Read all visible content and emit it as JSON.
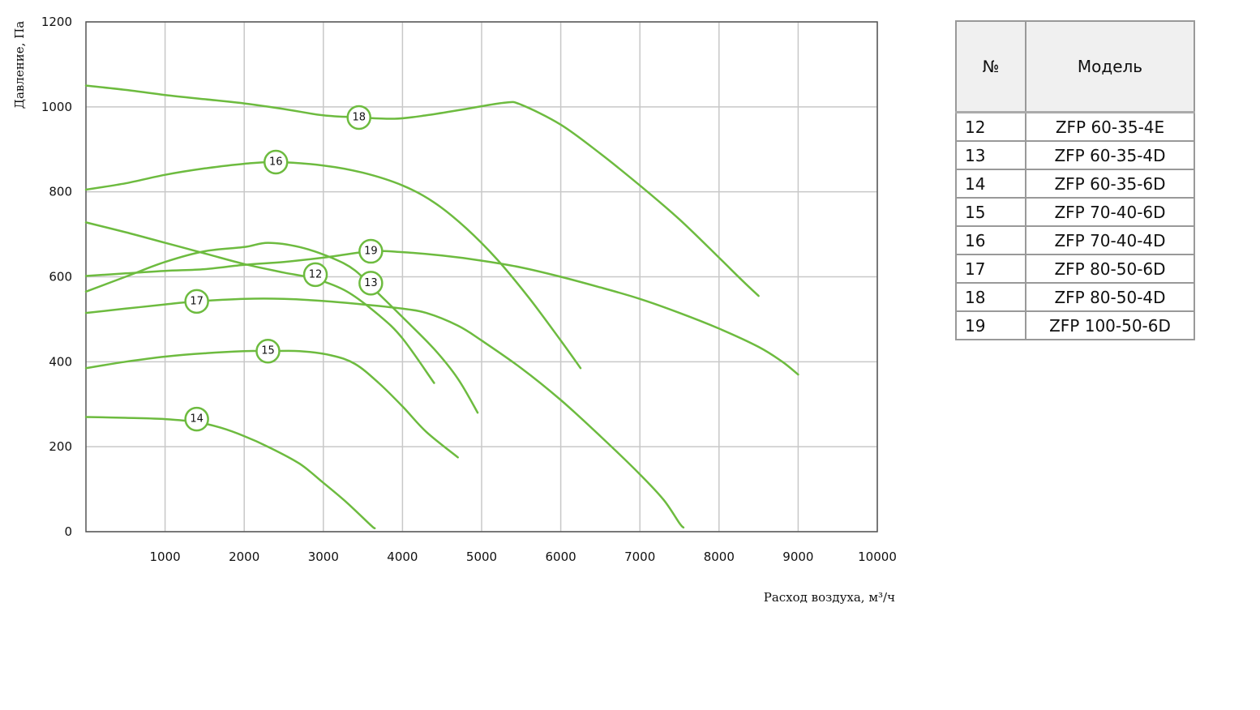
{
  "chart_data": {
    "type": "line",
    "xlabel": "Расход воздуха, м³/ч",
    "ylabel": "Давление, Па",
    "xlim": [
      0,
      10000
    ],
    "ylim": [
      0,
      1200
    ],
    "x_ticks": [
      1000,
      2000,
      3000,
      4000,
      5000,
      6000,
      7000,
      8000,
      9000,
      10000
    ],
    "y_ticks": [
      0,
      200,
      400,
      600,
      800,
      1000,
      1200
    ],
    "grid": true,
    "line_color": "#6dbb3f",
    "series": [
      {
        "name": "12",
        "label_at": [
          2900,
          605
        ],
        "points": [
          [
            0,
            728
          ],
          [
            500,
            705
          ],
          [
            1000,
            680
          ],
          [
            1500,
            655
          ],
          [
            2000,
            630
          ],
          [
            2500,
            610
          ],
          [
            2900,
            595
          ],
          [
            3300,
            565
          ],
          [
            3700,
            510
          ],
          [
            4000,
            455
          ],
          [
            4400,
            350
          ]
        ]
      },
      {
        "name": "13",
        "label_at": [
          3600,
          585
        ],
        "points": [
          [
            0,
            565
          ],
          [
            500,
            600
          ],
          [
            1000,
            635
          ],
          [
            1500,
            660
          ],
          [
            2000,
            670
          ],
          [
            2300,
            680
          ],
          [
            2700,
            670
          ],
          [
            3100,
            645
          ],
          [
            3400,
            615
          ],
          [
            3700,
            560
          ],
          [
            4000,
            505
          ],
          [
            4400,
            430
          ],
          [
            4700,
            360
          ],
          [
            4950,
            280
          ]
        ]
      },
      {
        "name": "14",
        "label_at": [
          1400,
          265
        ],
        "points": [
          [
            0,
            270
          ],
          [
            500,
            268
          ],
          [
            1000,
            265
          ],
          [
            1400,
            258
          ],
          [
            1700,
            245
          ],
          [
            2000,
            225
          ],
          [
            2300,
            200
          ],
          [
            2700,
            160
          ],
          [
            3000,
            115
          ],
          [
            3300,
            68
          ],
          [
            3600,
            15
          ],
          [
            3650,
            8
          ]
        ]
      },
      {
        "name": "15",
        "label_at": [
          2300,
          425
        ],
        "points": [
          [
            0,
            385
          ],
          [
            500,
            400
          ],
          [
            1000,
            412
          ],
          [
            1500,
            420
          ],
          [
            2000,
            425
          ],
          [
            2300,
            425
          ],
          [
            2700,
            425
          ],
          [
            3100,
            415
          ],
          [
            3400,
            395
          ],
          [
            3700,
            350
          ],
          [
            4000,
            295
          ],
          [
            4300,
            235
          ],
          [
            4700,
            175
          ]
        ]
      },
      {
        "name": "16",
        "label_at": [
          2400,
          870
        ],
        "points": [
          [
            0,
            805
          ],
          [
            500,
            820
          ],
          [
            1000,
            840
          ],
          [
            1500,
            855
          ],
          [
            2000,
            866
          ],
          [
            2400,
            870
          ],
          [
            3000,
            862
          ],
          [
            3500,
            845
          ],
          [
            4000,
            815
          ],
          [
            4400,
            775
          ],
          [
            4800,
            715
          ],
          [
            5200,
            640
          ],
          [
            5600,
            550
          ],
          [
            6000,
            450
          ],
          [
            6250,
            385
          ]
        ]
      },
      {
        "name": "17",
        "label_at": [
          1400,
          542
        ],
        "points": [
          [
            0,
            515
          ],
          [
            500,
            525
          ],
          [
            1000,
            535
          ],
          [
            1400,
            542
          ],
          [
            2000,
            548
          ],
          [
            2500,
            548
          ],
          [
            3000,
            543
          ],
          [
            3500,
            535
          ],
          [
            4000,
            525
          ],
          [
            4300,
            515
          ],
          [
            4700,
            485
          ],
          [
            5000,
            450
          ],
          [
            5500,
            385
          ],
          [
            6000,
            310
          ],
          [
            6500,
            225
          ],
          [
            7000,
            135
          ],
          [
            7300,
            75
          ],
          [
            7500,
            20
          ],
          [
            7550,
            10
          ]
        ]
      },
      {
        "name": "18",
        "label_at": [
          3450,
          975
        ],
        "points": [
          [
            0,
            1050
          ],
          [
            500,
            1040
          ],
          [
            1000,
            1028
          ],
          [
            1500,
            1018
          ],
          [
            2000,
            1008
          ],
          [
            2500,
            995
          ],
          [
            3000,
            980
          ],
          [
            3450,
            975
          ],
          [
            3900,
            972
          ],
          [
            4300,
            980
          ],
          [
            4800,
            995
          ],
          [
            5300,
            1010
          ],
          [
            5500,
            1005
          ],
          [
            6000,
            958
          ],
          [
            6500,
            890
          ],
          [
            7000,
            815
          ],
          [
            7500,
            735
          ],
          [
            8000,
            645
          ],
          [
            8300,
            590
          ],
          [
            8500,
            555
          ]
        ]
      },
      {
        "name": "19",
        "label_at": [
          3600,
          660
        ],
        "points": [
          [
            0,
            602
          ],
          [
            500,
            608
          ],
          [
            1000,
            614
          ],
          [
            1500,
            618
          ],
          [
            2000,
            628
          ],
          [
            2500,
            635
          ],
          [
            3000,
            645
          ],
          [
            3600,
            660
          ],
          [
            4000,
            658
          ],
          [
            4500,
            650
          ],
          [
            5000,
            638
          ],
          [
            5500,
            622
          ],
          [
            6000,
            600
          ],
          [
            6500,
            575
          ],
          [
            7000,
            548
          ],
          [
            7500,
            515
          ],
          [
            8000,
            478
          ],
          [
            8500,
            435
          ],
          [
            8800,
            400
          ],
          [
            9000,
            370
          ]
        ]
      }
    ]
  },
  "table": {
    "header_num": "№",
    "header_model": "Модель",
    "rows": [
      {
        "num": "12",
        "model": "ZFP 60-35-4E"
      },
      {
        "num": "13",
        "model": "ZFP 60-35-4D"
      },
      {
        "num": "14",
        "model": "ZFP 60-35-6D"
      },
      {
        "num": "15",
        "model": "ZFP 70-40-6D"
      },
      {
        "num": "16",
        "model": "ZFP 70-40-4D"
      },
      {
        "num": "17",
        "model": "ZFP 80-50-6D"
      },
      {
        "num": "18",
        "model": "ZFP 80-50-4D"
      },
      {
        "num": "19",
        "model": "ZFP 100-50-6D"
      }
    ]
  }
}
